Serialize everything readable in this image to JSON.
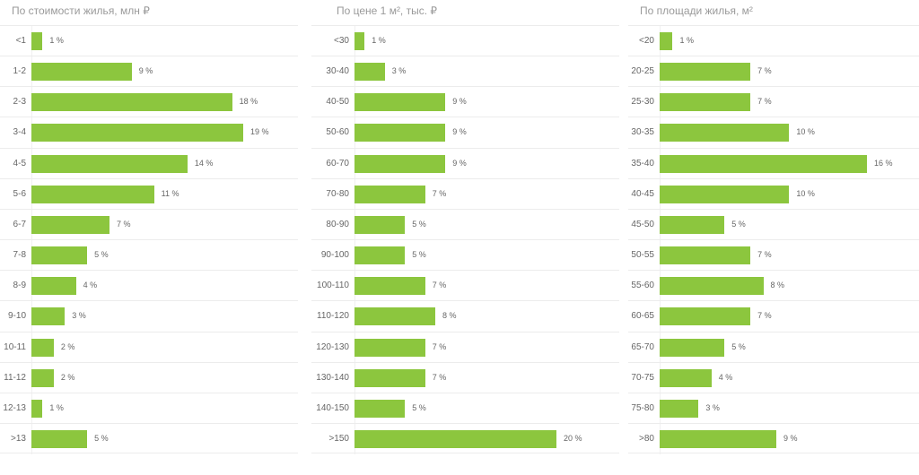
{
  "chart_data": [
    {
      "type": "bar",
      "orientation": "horizontal",
      "title": "По стоимости жилья, млн ₽",
      "categories": [
        "<1",
        "1-2",
        "2-3",
        "3-4",
        "4-5",
        "5-6",
        "6-7",
        "7-8",
        "8-9",
        "9-10",
        "10-11",
        "11-12",
        "12-13",
        ">13"
      ],
      "values": [
        1,
        9,
        18,
        19,
        14,
        11,
        7,
        5,
        4,
        3,
        2,
        2,
        1,
        5
      ],
      "unit": "%",
      "color": "#8cc63e"
    },
    {
      "type": "bar",
      "orientation": "horizontal",
      "title": "По цене 1 м², тыс. ₽",
      "categories": [
        "<30",
        "30-40",
        "40-50",
        "50-60",
        "60-70",
        "70-80",
        "80-90",
        "90-100",
        "100-110",
        "110-120",
        "120-130",
        "130-140",
        "140-150",
        ">150"
      ],
      "values": [
        1,
        3,
        9,
        9,
        9,
        7,
        5,
        5,
        7,
        8,
        7,
        7,
        5,
        20
      ],
      "unit": "%",
      "color": "#8cc63e"
    },
    {
      "type": "bar",
      "orientation": "horizontal",
      "title": "По площади жилья, м²",
      "categories": [
        "<20",
        "20-25",
        "25-30",
        "30-35",
        "35-40",
        "40-45",
        "45-50",
        "50-55",
        "55-60",
        "60-65",
        "65-70",
        "70-75",
        "75-80",
        ">80"
      ],
      "values": [
        1,
        7,
        7,
        10,
        16,
        10,
        5,
        7,
        8,
        7,
        5,
        4,
        3,
        9
      ],
      "unit": "%",
      "color": "#8cc63e"
    }
  ]
}
